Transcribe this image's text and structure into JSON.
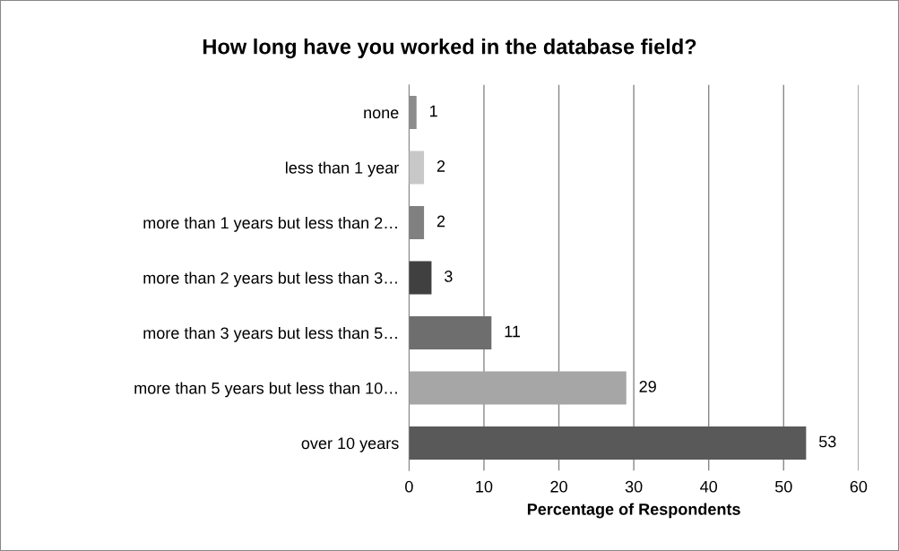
{
  "chart_data": {
    "type": "bar",
    "orientation": "horizontal",
    "title": "How long have you worked in the database field?",
    "xlabel": "Percentage of Respondents",
    "categories": [
      "none",
      "less than 1 year",
      "more than 1 years but less than 2…",
      "more than 2 years but less than 3…",
      "more than 3 years but less than 5…",
      "more than 5 years but less than 10…",
      "over 10 years"
    ],
    "values": [
      1,
      2,
      2,
      3,
      11,
      29,
      53
    ],
    "colors": [
      "#8c8c8c",
      "#c8c8c8",
      "#808080",
      "#404040",
      "#6e6e6e",
      "#a6a6a6",
      "#595959"
    ],
    "xlim": [
      0,
      60
    ],
    "xticks": [
      0,
      10,
      20,
      30,
      40,
      50,
      60
    ],
    "grid": "x",
    "data_labels": true
  }
}
